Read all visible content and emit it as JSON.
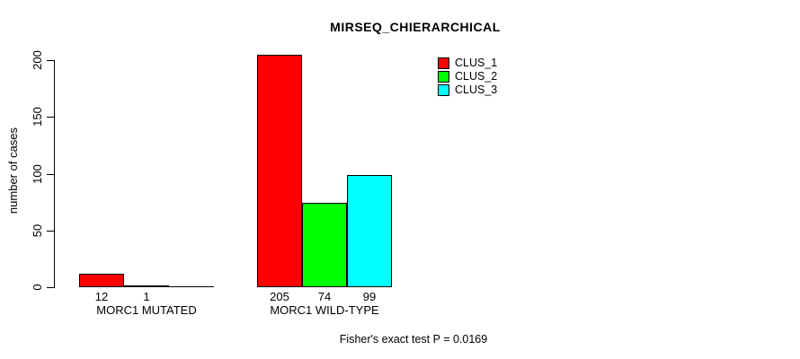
{
  "chart_data": {
    "type": "bar",
    "title": "MIRSEQ_CHIERARCHICAL",
    "xlabel": "",
    "ylabel": "number of cases",
    "categories": [
      "MORC1 MUTATED",
      "MORC1 WILD-TYPE"
    ],
    "series": [
      {
        "name": "CLUS_1",
        "color": "#ff0000",
        "values": [
          12,
          205
        ]
      },
      {
        "name": "CLUS_2",
        "color": "#00ff00",
        "values": [
          1,
          74
        ]
      },
      {
        "name": "CLUS_3",
        "color": "#00ffff",
        "values": [
          0,
          99
        ]
      }
    ],
    "yticks": [
      0,
      50,
      100,
      150,
      200
    ],
    "ylim": [
      0,
      205
    ],
    "grid": false,
    "legend_position": "top-right",
    "bar_value_labels_shown": true,
    "zero_value_labels_hidden": true,
    "annotation": "Fisher's exact test P = 0.0169"
  }
}
